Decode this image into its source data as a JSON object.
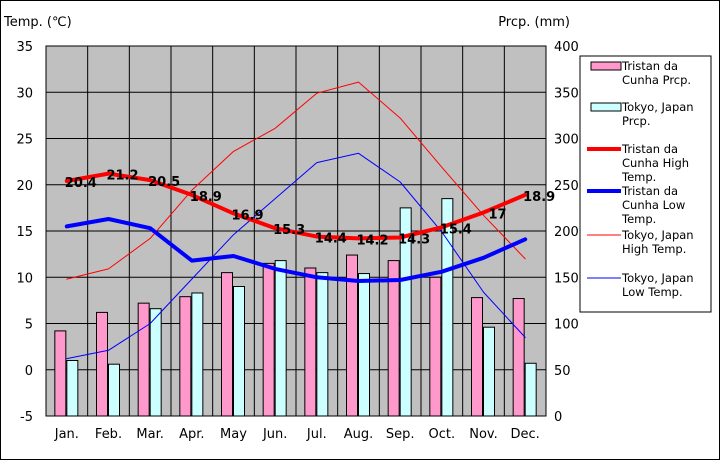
{
  "chart_data": {
    "type": "bar+line",
    "title": "",
    "left_axis_label": "Temp. (℃)",
    "right_axis_label": "Prcp. (mm)",
    "categories": [
      "Jan.",
      "Feb.",
      "Mar.",
      "Apr.",
      "May",
      "Jun.",
      "Jul.",
      "Aug.",
      "Sep.",
      "Oct.",
      "Nov.",
      "Dec."
    ],
    "ylim_temp": [
      -5,
      35
    ],
    "ylim_prcp": [
      0,
      400
    ],
    "temp_ticks": [
      35,
      30,
      25,
      20,
      15,
      10,
      5,
      0,
      -5
    ],
    "prcp_ticks": [
      400,
      350,
      300,
      250,
      200,
      150,
      100,
      50,
      0
    ],
    "bar_series": [
      {
        "name": "Tristan da Cunha Prcp.",
        "legend_lines": [
          "Tristan da",
          "Cunha Prcp."
        ],
        "color": "#ff99cc",
        "values": [
          92,
          112,
          122,
          129,
          155,
          165,
          160,
          174,
          168,
          150,
          128,
          127
        ]
      },
      {
        "name": "Tokyo, Japan Prcp.",
        "legend_lines": [
          "Tokyo, Japan",
          "Prcp."
        ],
        "color": "#ccffff",
        "values": [
          60,
          56,
          116,
          133,
          140,
          168,
          155,
          154,
          225,
          235,
          96,
          57
        ]
      }
    ],
    "line_series": [
      {
        "name": "Tristan da Cunha High Temp.",
        "legend_lines": [
          "Tristan da",
          "Cunha High",
          "Temp."
        ],
        "color": "#ff0000",
        "width": 4,
        "values": [
          20.4,
          21.2,
          20.5,
          18.9,
          16.9,
          15.3,
          14.4,
          14.2,
          14.3,
          15.4,
          17,
          18.9
        ],
        "labels": [
          "20.4",
          "21.2",
          "20.5",
          "18.9",
          "16.9",
          "15.3",
          "14.4",
          "14.2",
          "14.3",
          "15.4",
          "17",
          "18.9"
        ]
      },
      {
        "name": "Tristan da Cunha Low Temp.",
        "legend_lines": [
          "Tristan da",
          "Cunha Low",
          "Temp."
        ],
        "color": "#0000ff",
        "width": 4,
        "values": [
          15.5,
          16.3,
          15.3,
          11.8,
          12.3,
          10.9,
          10,
          9.6,
          9.7,
          10.6,
          12.1,
          14.1
        ]
      },
      {
        "name": "Tokyo, Japan High Temp.",
        "legend_lines": [
          "Tokyo, Japan",
          "High Temp."
        ],
        "color": "#ff0000",
        "width": 1,
        "values": [
          9.8,
          10.9,
          14.2,
          19.4,
          23.6,
          26.1,
          29.9,
          31.1,
          27.2,
          21.9,
          16.7,
          12.0
        ]
      },
      {
        "name": "Tokyo, Japan Low Temp.",
        "legend_lines": [
          "Tokyo, Japan",
          "Low Temp."
        ],
        "color": "#0000ff",
        "width": 1,
        "values": [
          1.2,
          2.1,
          5.0,
          9.8,
          14.6,
          18.5,
          22.4,
          23.4,
          20.3,
          14.9,
          8.4,
          3.5
        ]
      }
    ]
  }
}
